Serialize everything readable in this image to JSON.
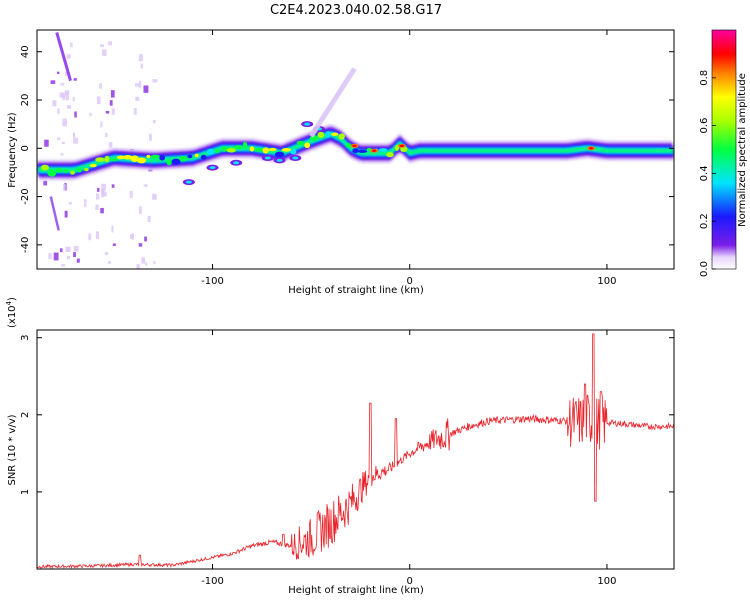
{
  "title": "C2E4.2023.040.02.58.G17",
  "chart_data": [
    {
      "type": "heatmap",
      "xlabel": "Height of straight line (km)",
      "ylabel": "Frequency (Hz)",
      "xlim": [
        -189,
        134
      ],
      "ylim": [
        -50,
        49
      ],
      "xticks": [
        -100,
        0,
        100
      ],
      "yticks": [
        -40,
        -20,
        0,
        20,
        40
      ],
      "colorbar": {
        "label": "Normalized spectral amplitude",
        "range": [
          0.0,
          1.0
        ],
        "ticks": [
          "0.0",
          "0.2",
          "0.4",
          "0.6",
          "0.8"
        ]
      },
      "ridge": {
        "x": [
          -189,
          -170,
          -150,
          -130,
          -110,
          -95,
          -80,
          -65,
          -50,
          -40,
          -35,
          -30,
          -25,
          -20,
          -10,
          -5,
          0,
          5,
          20,
          40,
          60,
          80,
          90,
          100,
          120,
          134
        ],
        "y": [
          -9,
          -9,
          -4,
          -5,
          -4,
          0,
          0,
          -2,
          3,
          6,
          4,
          0,
          -2,
          -2,
          -2,
          2,
          -2,
          -1,
          -1,
          -1,
          -1,
          -1,
          0,
          -1,
          -1,
          -1
        ]
      }
    },
    {
      "type": "line",
      "xlabel": "Height of straight line (km)",
      "ylabel": "SNR (10 * v/v)",
      "y_scale_label": "(x10",
      "y_scale_exp": "4",
      "y_scale_close": ")",
      "xlim": [
        -189,
        134
      ],
      "ylim": [
        0,
        3.1
      ],
      "xticks": [
        -100,
        0,
        100
      ],
      "yticks": [
        1,
        2,
        3
      ],
      "series_color": "#e8232a",
      "envelope": {
        "x": [
          -189,
          -160,
          -140,
          -120,
          -100,
          -90,
          -80,
          -70,
          -60,
          -50,
          -40,
          -30,
          -20,
          -10,
          0,
          10,
          20,
          30,
          40,
          60,
          80,
          85,
          90,
          95,
          100,
          110,
          120,
          134
        ],
        "y": [
          0.03,
          0.04,
          0.06,
          0.05,
          0.15,
          0.2,
          0.3,
          0.35,
          0.3,
          0.4,
          0.6,
          0.85,
          1.2,
          1.3,
          1.5,
          1.65,
          1.75,
          1.85,
          1.92,
          1.95,
          1.92,
          1.9,
          1.95,
          1.9,
          1.9,
          1.88,
          1.85,
          1.85
        ]
      },
      "spikes": [
        {
          "x": -137,
          "y": 0.18
        },
        {
          "x": -64,
          "y": 0.45
        },
        {
          "x": -20,
          "y": 2.15
        },
        {
          "x": -7,
          "y": 1.95
        },
        {
          "x": 89,
          "y": 2.4
        },
        {
          "x": 93,
          "y": 3.05
        },
        {
          "x": 94,
          "y": 0.88
        },
        {
          "x": 97,
          "y": 2.3
        }
      ]
    }
  ]
}
